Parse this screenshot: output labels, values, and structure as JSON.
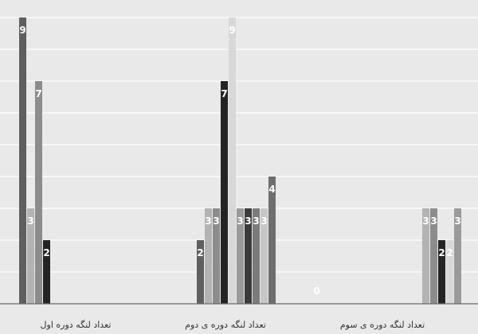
{
  "chart_data": {
    "type": "bar",
    "categories": [
      "تعداد لنگه دوره اول",
      "تعداد لنگه دوره ی دوم",
      "تعداد لنگه دوره ی سوم"
    ],
    "series": [
      {
        "color": "#5f5f5f",
        "values": [
          9,
          2,
          0
        ]
      },
      {
        "color": "#b3b3b3",
        "values": [
          3,
          3,
          3
        ]
      },
      {
        "color": "#8c8c8c",
        "values": [
          7,
          3,
          3
        ]
      },
      {
        "color": "#242424",
        "values": [
          2,
          7,
          2
        ]
      },
      {
        "color": "#d8d8d8",
        "values": [
          null,
          9,
          2
        ]
      },
      {
        "color": "#9a9a9a",
        "values": [
          null,
          3,
          3
        ]
      },
      {
        "color": "#3a3a3a",
        "values": [
          null,
          3,
          null
        ]
      },
      {
        "color": "#7b7b7b",
        "values": [
          null,
          3,
          null
        ]
      },
      {
        "color": "#c6c6c6",
        "values": [
          null,
          3,
          null
        ]
      },
      {
        "color": "#6e6e6e",
        "values": [
          null,
          4,
          null
        ]
      }
    ],
    "ylim": [
      0,
      9
    ],
    "grid": true,
    "legend": "none",
    "title": "",
    "xlabel": "",
    "ylabel": ""
  }
}
